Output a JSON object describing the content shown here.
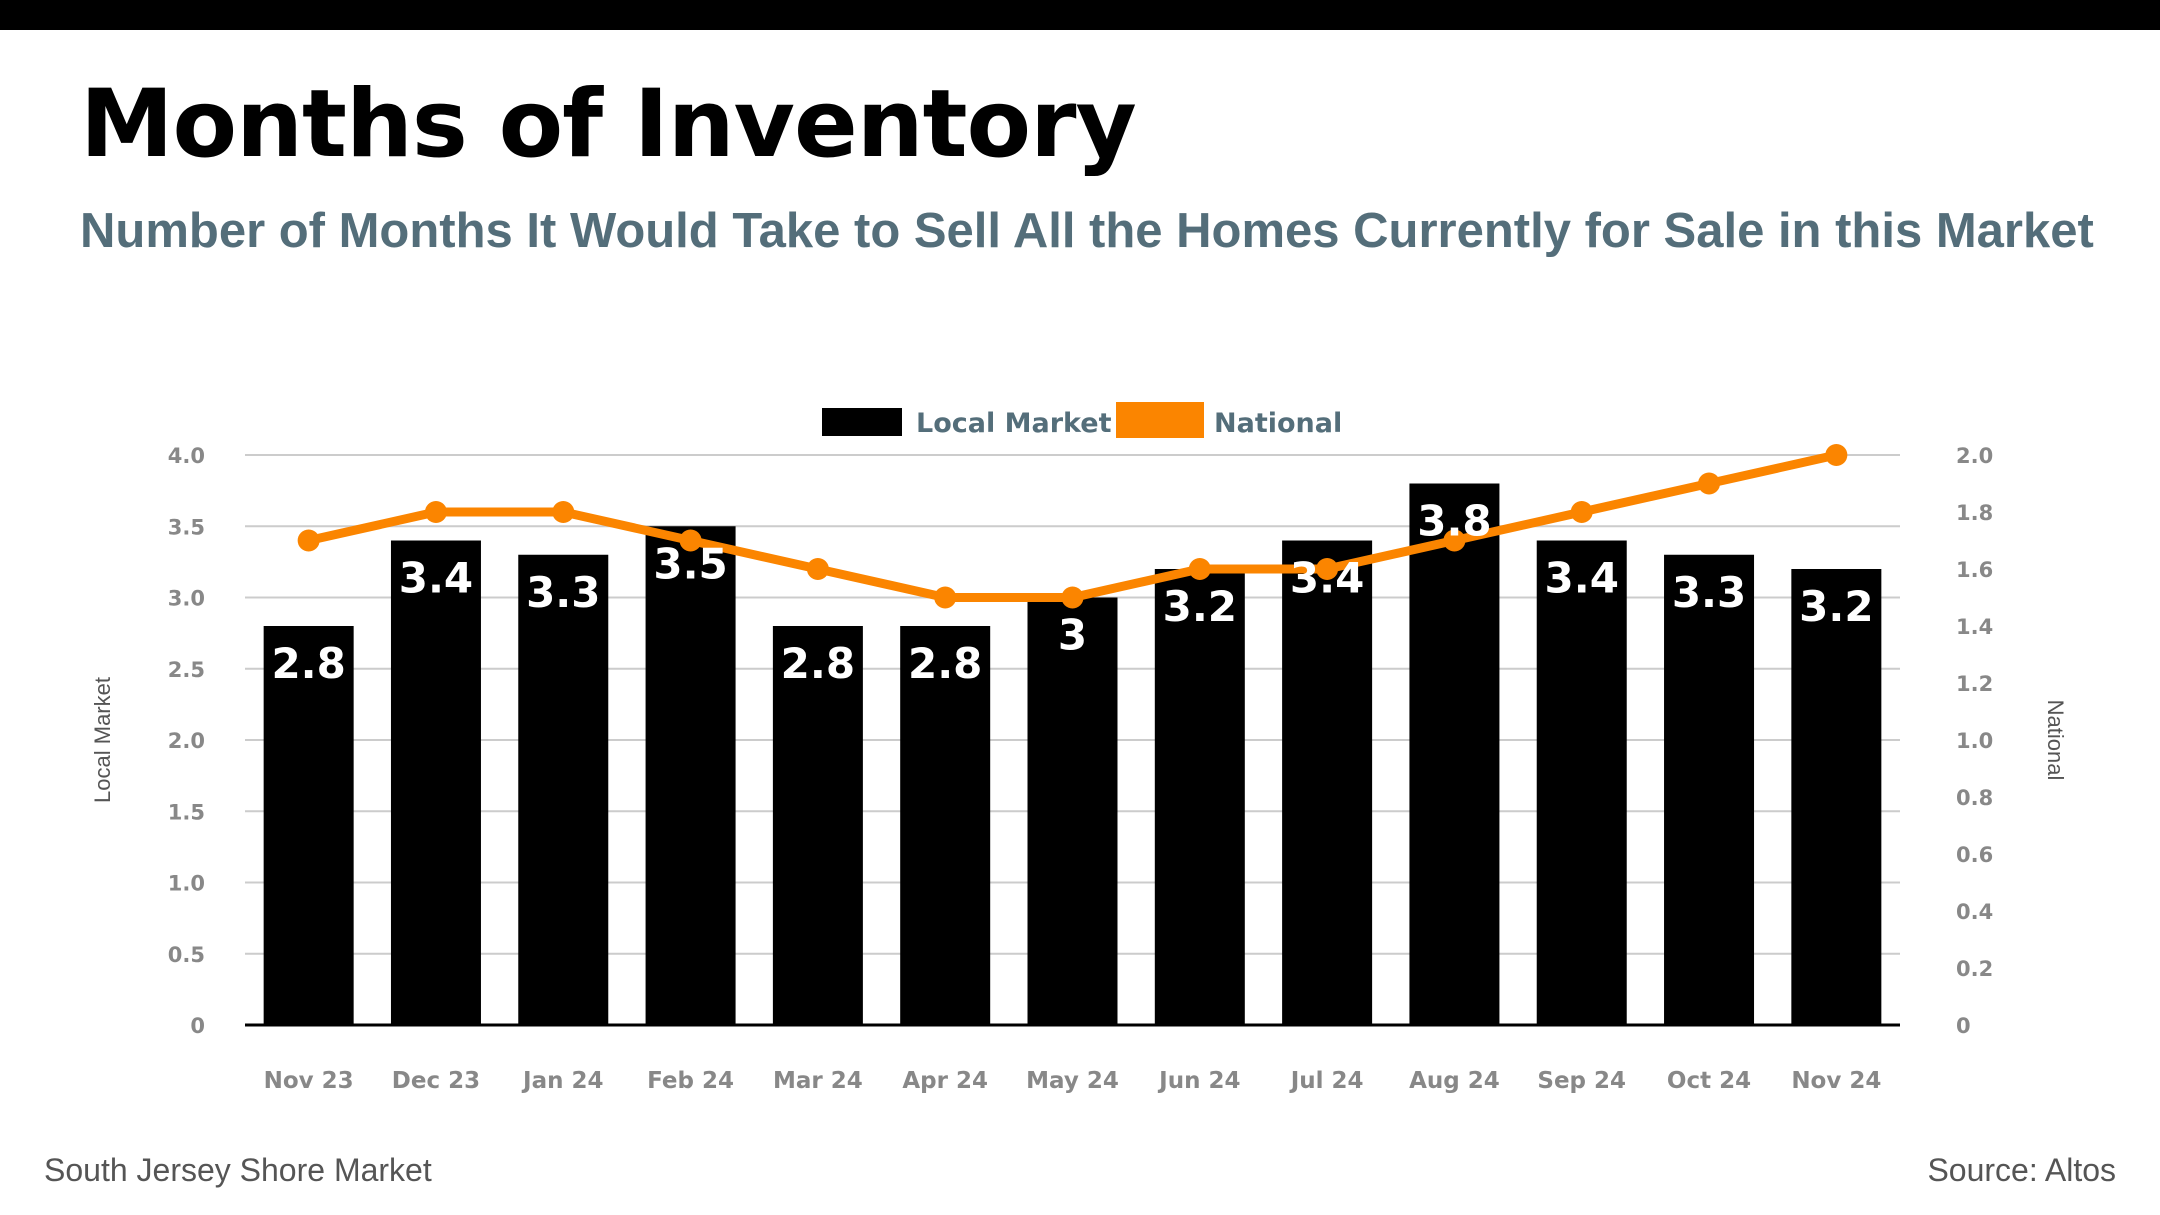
{
  "header": {
    "title": "Months of Inventory",
    "subtitle": "Number of Months It Would Take to Sell All the Homes Currently for Sale in this Market"
  },
  "footer": {
    "market": "South Jersey Shore Market",
    "source": "Source: Altos"
  },
  "colors": {
    "local_bar": "#000000",
    "national_line": "#fb8500",
    "subtitle": "#546e7a"
  },
  "chart_data": {
    "type": "bar",
    "categories": [
      "Nov 23",
      "Dec 23",
      "Jan 24",
      "Feb 24",
      "Mar 24",
      "Apr 24",
      "May 24",
      "Jun 24",
      "Jul 24",
      "Aug 24",
      "Sep 24",
      "Oct 24",
      "Nov 24"
    ],
    "series": [
      {
        "name": "Local Market",
        "type": "bar",
        "axis": "left",
        "color": "#000000",
        "values": [
          2.8,
          3.4,
          3.3,
          3.5,
          2.8,
          2.8,
          3.0,
          3.2,
          3.4,
          3.8,
          3.4,
          3.3,
          3.2
        ],
        "labels": [
          "2.8",
          "3.4",
          "3.3",
          "3.5",
          "2.8",
          "2.8",
          "3",
          "3.2",
          "3.4",
          "3.8",
          "3.4",
          "3.3",
          "3.2"
        ]
      },
      {
        "name": "National",
        "type": "line",
        "axis": "right",
        "color": "#fb8500",
        "values": [
          1.7,
          1.8,
          1.8,
          1.7,
          1.6,
          1.5,
          1.5,
          1.6,
          1.6,
          1.7,
          1.8,
          1.9,
          2.0
        ]
      }
    ],
    "ylabel": "Local Market",
    "y2label": "National",
    "ylim": [
      0,
      4
    ],
    "y2lim": [
      0,
      2
    ],
    "yticks": [
      "0",
      "0.5",
      "1.0",
      "1.5",
      "2.0",
      "2.5",
      "3.0",
      "3.5",
      "4.0"
    ],
    "y2ticks": [
      "0",
      "0.2",
      "0.4",
      "0.6",
      "0.8",
      "1.0",
      "1.2",
      "1.4",
      "1.6",
      "1.8",
      "2.0"
    ],
    "grid": true,
    "legend_position": "top-center"
  }
}
